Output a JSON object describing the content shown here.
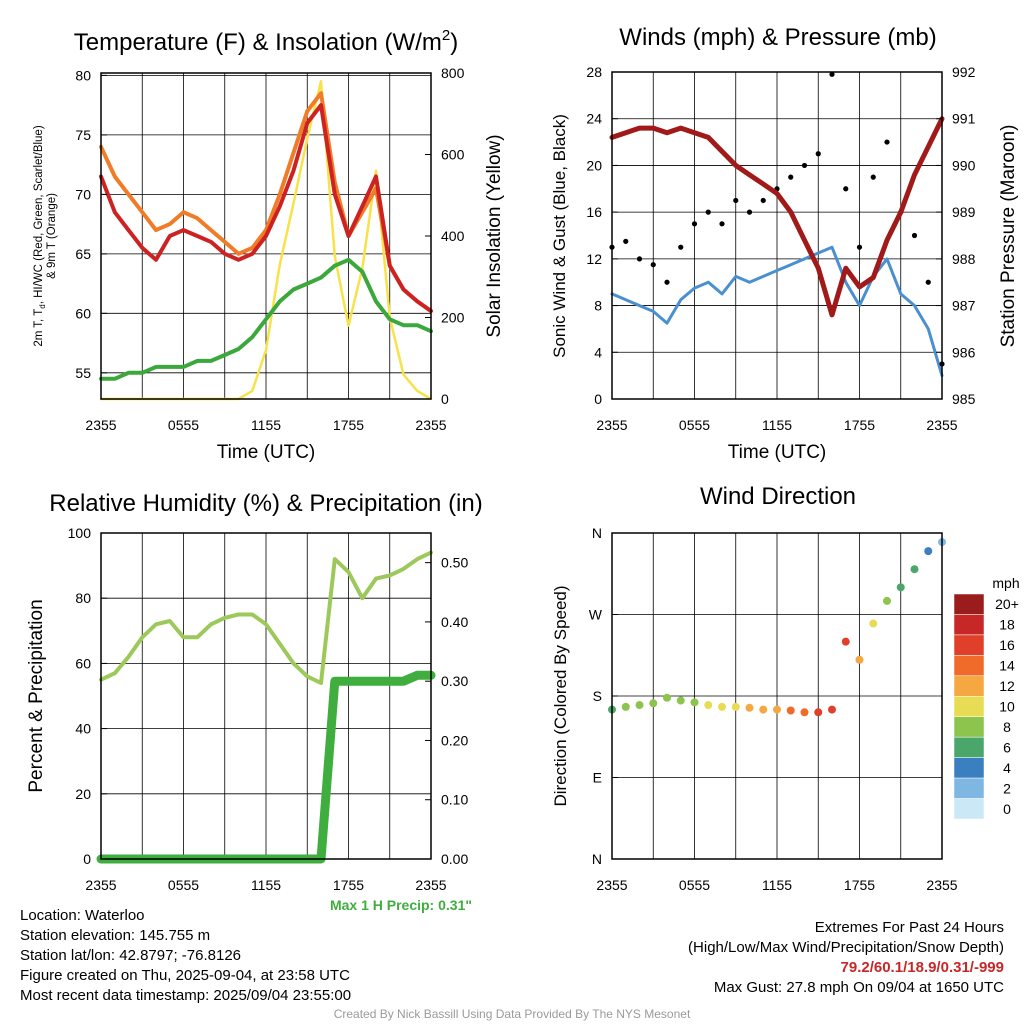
{
  "panels": [
    {
      "id": "temp",
      "title": "Temperature (F) & Insolation (W/m",
      "title_sup": "2",
      "title_end": ")",
      "ylabel_left": [
        "2m T, T",
        "d",
        ", HI/WC (Red, Green, Scarlet/Blue)",
        "& 9m T (Orange)"
      ],
      "ylabel_right": "Solar Insolation (Yellow)",
      "xlabel": "Time (UTC)",
      "x_ticks": [
        "2355",
        "0555",
        "1155",
        "1755",
        "2355"
      ],
      "y_left_ticks": [
        "80",
        "75",
        "70",
        "65",
        "60",
        "55"
      ],
      "y_right_ticks": [
        "800",
        "600",
        "400",
        "200",
        "0"
      ]
    },
    {
      "id": "wind",
      "title": "Winds (mph) & Pressure (mb)",
      "ylabel_left": "Sonic Wind & Gust (Blue, Black)",
      "ylabel_right": "Station Pressure (Maroon)",
      "xlabel": "Time (UTC)",
      "x_ticks": [
        "2355",
        "0555",
        "1155",
        "1755",
        "2355"
      ],
      "y_left_ticks": [
        "28",
        "24",
        "20",
        "16",
        "12",
        "8",
        "4",
        "0"
      ],
      "y_right_ticks": [
        "992",
        "991",
        "990",
        "989",
        "988",
        "987",
        "986",
        "985"
      ]
    },
    {
      "id": "rh",
      "title": "Relative Humidity (%) & Precipitation (in)",
      "ylabel_left": "Percent & Precipitation",
      "x_ticks": [
        "2355",
        "0555",
        "1155",
        "1755",
        "2355"
      ],
      "y_left_ticks": [
        "100",
        "80",
        "60",
        "40",
        "20",
        "0"
      ],
      "y_right_ticks": [
        "0.50",
        "0.40",
        "0.30",
        "0.20",
        "0.10",
        "0.00"
      ],
      "annotation": "Max 1 H Precip: 0.31\""
    },
    {
      "id": "dir",
      "title": "Wind Direction",
      "ylabel_left": "Direction (Colored By Speed)",
      "x_ticks": [
        "2355",
        "0555",
        "1155",
        "1755",
        "2355"
      ],
      "y_left_ticks": [
        "N",
        "W",
        "S",
        "E",
        "N"
      ],
      "legend_title": "mph",
      "legend_labels": [
        "20+",
        "18",
        "16",
        "14",
        "12",
        "10",
        "8",
        "6",
        "4",
        "2",
        "0"
      ]
    }
  ],
  "colors": {
    "temp_red": "#cc2222",
    "temp_orange": "#f07c28",
    "dewpoint_green": "#3aa83a",
    "insolation_yellow": "#f7e24a",
    "wind_blue": "#4a90d0",
    "gust_black": "#000000",
    "pressure_maroon": "#a11a1a",
    "rh_green": "#9cc95a",
    "precip_green": "#3fae3f",
    "legend_scale": [
      "#9b1c1c",
      "#c62828",
      "#e0402a",
      "#f06a2a",
      "#f5a742",
      "#e8dc55",
      "#8cc44e",
      "#4aa66a",
      "#3a7fc0",
      "#7fb7e3",
      "#cbe8f7"
    ]
  },
  "chart_data": [
    {
      "type": "line",
      "title": "Temperature (F) & Insolation (W/m2)",
      "xlabel": "Time (UTC)",
      "x_hours": [
        0,
        1,
        2,
        3,
        4,
        5,
        6,
        7,
        8,
        9,
        10,
        11,
        12,
        13,
        14,
        15,
        16,
        17,
        18,
        19,
        20,
        21,
        22,
        23,
        24
      ],
      "ylim": [
        52.8,
        80.2
      ],
      "y2lim": [
        0,
        800
      ],
      "series": [
        {
          "axis": "left",
          "values": [
            71.5,
            68.5,
            67.0,
            65.5,
            64.5,
            66.5,
            67.0,
            66.5,
            66.0,
            65.0,
            64.5,
            65.0,
            66.5,
            69.0,
            72.0,
            76.0,
            77.5,
            70.0,
            66.5,
            69.0,
            71.5,
            64.0,
            62.0,
            61.0,
            60.2
          ]
        },
        {
          "axis": "left",
          "values": [
            74.0,
            71.5,
            70.0,
            68.5,
            67.0,
            67.5,
            68.5,
            68.0,
            67.0,
            66.0,
            65.0,
            65.5,
            67.0,
            70.0,
            73.5,
            77.0,
            78.5,
            71.0,
            66.5,
            68.5,
            70.5,
            64.0,
            62.0,
            61.0,
            60.2
          ]
        },
        {
          "axis": "left",
          "values": [
            54.5,
            54.5,
            55.0,
            55.0,
            55.5,
            55.5,
            55.5,
            56.0,
            56.0,
            56.5,
            57.0,
            58.0,
            59.5,
            61.0,
            62.0,
            62.5,
            63.0,
            64.0,
            64.5,
            63.5,
            61.0,
            59.5,
            59.0,
            59.0,
            58.5
          ]
        },
        {
          "axis": "right",
          "values": [
            0,
            0,
            0,
            0,
            0,
            0,
            0,
            0,
            0,
            0,
            0,
            20,
            120,
            330,
            480,
            640,
            780,
            350,
            180,
            320,
            560,
            200,
            60,
            20,
            0
          ]
        }
      ]
    },
    {
      "type": "line",
      "title": "Winds (mph) & Pressure (mb)",
      "xlabel": "Time (UTC)",
      "ylabel": "Sonic Wind & Gust (Blue, Black)",
      "y2label": "Station Pressure (Maroon)",
      "x_hours": [
        0,
        1,
        2,
        3,
        4,
        5,
        6,
        7,
        8,
        9,
        10,
        11,
        12,
        13,
        14,
        15,
        16,
        17,
        18,
        19,
        20,
        21,
        22,
        23,
        24
      ],
      "ylim": [
        0,
        28
      ],
      "y2lim": [
        985,
        992
      ],
      "series": [
        {
          "axis": "left",
          "values": [
            9.0,
            8.5,
            8.0,
            7.5,
            6.5,
            8.5,
            9.5,
            10.0,
            9.0,
            10.5,
            10.0,
            10.5,
            11.0,
            11.5,
            12.0,
            12.5,
            13.0,
            10.0,
            8.0,
            10.5,
            12.0,
            9.0,
            8.0,
            6.0,
            2.0
          ]
        },
        {
          "axis": "left",
          "values": [
            13.0,
            13.5,
            12.0,
            11.5,
            10.0,
            13.0,
            15.0,
            16.0,
            15.0,
            17.0,
            16.0,
            17.0,
            18.0,
            19.0,
            20.0,
            21.0,
            27.8,
            18.0,
            13.0,
            19.0,
            22.0,
            16.0,
            14.0,
            10.0,
            3.0
          ]
        },
        {
          "axis": "right",
          "values": [
            990.6,
            990.7,
            990.8,
            990.8,
            990.7,
            990.8,
            990.7,
            990.6,
            990.3,
            990.0,
            989.8,
            989.6,
            989.4,
            989.0,
            988.4,
            987.8,
            986.8,
            987.8,
            987.4,
            987.6,
            988.4,
            989.0,
            989.8,
            990.4,
            991.0
          ]
        }
      ]
    },
    {
      "type": "line",
      "title": "Relative Humidity (%) & Precipitation (in)",
      "ylabel": "Percent & Precipitation",
      "x_hours": [
        0,
        1,
        2,
        3,
        4,
        5,
        6,
        7,
        8,
        9,
        10,
        11,
        12,
        13,
        14,
        15,
        16,
        17,
        18,
        19,
        20,
        21,
        22,
        23,
        24
      ],
      "ylim": [
        0,
        100
      ],
      "y2lim": [
        0,
        0.55
      ],
      "annotation": "Max 1 H Precip: 0.31\"",
      "series": [
        {
          "axis": "left",
          "values": [
            55,
            57,
            62,
            68,
            72,
            73,
            68,
            68,
            72,
            74,
            75,
            75,
            72,
            66,
            60,
            56,
            54,
            92,
            88,
            80,
            86,
            87,
            89,
            92,
            94
          ]
        },
        {
          "axis": "right",
          "values": [
            0,
            0,
            0,
            0,
            0,
            0,
            0,
            0,
            0,
            0,
            0,
            0,
            0,
            0,
            0,
            0,
            0,
            0.3,
            0.3,
            0.3,
            0.3,
            0.3,
            0.3,
            0.31,
            0.31
          ]
        }
      ]
    },
    {
      "type": "scatter",
      "title": "Wind Direction",
      "ylabel": "Direction (Colored By Speed)",
      "x_hours": [
        0,
        1,
        2,
        3,
        4,
        5,
        6,
        7,
        8,
        9,
        10,
        11,
        12,
        13,
        14,
        15,
        16,
        17,
        18,
        19,
        20,
        21,
        22,
        23,
        24
      ],
      "ylim": [
        0,
        360
      ],
      "y_ticks_deg": [
        360,
        270,
        180,
        90,
        0
      ],
      "direction_deg": [
        165,
        168,
        170,
        172,
        178,
        175,
        173,
        170,
        168,
        168,
        167,
        165,
        165,
        164,
        162,
        162,
        165,
        240,
        220,
        260,
        285,
        300,
        320,
        340,
        350
      ],
      "speed_mph": [
        7,
        8,
        8,
        9,
        9,
        8,
        9,
        10,
        10,
        11,
        12,
        12,
        13,
        14,
        15,
        16,
        17,
        16,
        12,
        10,
        8,
        7,
        6,
        4,
        2
      ],
      "legend_title": "mph",
      "legend": [
        "20+",
        "18",
        "16",
        "14",
        "12",
        "10",
        "8",
        "6",
        "4",
        "2",
        "0"
      ]
    }
  ],
  "info": {
    "location": "Location: Waterloo",
    "elevation": "Station elevation: 145.755 m",
    "latlon": "Station lat/lon: 42.8797; -76.8126",
    "created": "Figure created on Thu, 2025-09-04, at 23:58 UTC",
    "recent": "Most recent data timestamp: 2025/09/04 23:55:00",
    "extremes_title": "Extremes For Past 24 Hours",
    "extremes_fields": "(High/Low/Max Wind/Precipitation/Snow Depth)",
    "extremes_values": "79.2/60.1/18.9/0.31/-999",
    "max_gust": "Max Gust: 27.8 mph On 09/04 at 1650 UTC"
  },
  "credit": "Created By Nick Bassill Using Data Provided By The NYS Mesonet"
}
